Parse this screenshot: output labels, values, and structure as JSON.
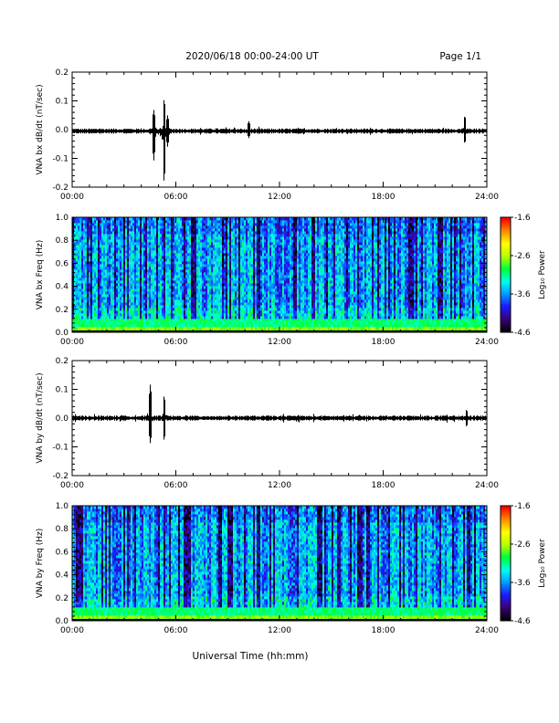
{
  "header": {
    "title": "2020/06/18  00:00-24:00 UT",
    "page": "Page 1/1"
  },
  "colors": {
    "trace": "#000000",
    "frame": "#000000",
    "colormap": [
      "#000000",
      "#3a0078",
      "#1a1aff",
      "#0099ff",
      "#00ffee",
      "#00ff33",
      "#b8ff00",
      "#ffff00",
      "#ff8c00",
      "#ff0000"
    ]
  },
  "chart_data": [
    {
      "type": "line",
      "ylabel": "VNA bx dB/dt (nT/sec)",
      "xlabel": "",
      "xlim": [
        "00:00",
        "24:00"
      ],
      "ylim": [
        -0.2,
        0.2
      ],
      "yticks": [
        "-0.2",
        "-0.1",
        "0.0",
        "0.1",
        "0.2"
      ],
      "xticks": [
        "00:00",
        "06:00",
        "12:00",
        "18:00",
        "24:00"
      ],
      "baseline": -0.005,
      "noise": 0.006,
      "events": [
        {
          "t": 4.7,
          "max": 0.07,
          "min": -0.11
        },
        {
          "t": 5.3,
          "max": 0.11,
          "min": -0.19
        },
        {
          "t": 5.5,
          "max": 0.05,
          "min": -0.06
        },
        {
          "t": 10.2,
          "max": 0.03,
          "min": -0.03
        },
        {
          "t": 22.7,
          "max": 0.05,
          "min": -0.05
        }
      ]
    },
    {
      "type": "heatmap",
      "ylabel": "VNA bx Freq (Hz)",
      "xlim": [
        "00:00",
        "24:00"
      ],
      "ylim": [
        0.0,
        1.0
      ],
      "yticks": [
        "0.0",
        "0.2",
        "0.4",
        "0.6",
        "0.8",
        "1.0"
      ],
      "xticks": [
        "00:00",
        "06:00",
        "12:00",
        "18:00",
        "24:00"
      ],
      "colorbar": {
        "label": "Log₁₀ Power",
        "min": -4.6,
        "max": -1.6,
        "ticks": [
          "-1.6",
          "-2.6",
          "-3.6",
          "-4.6"
        ]
      }
    },
    {
      "type": "line",
      "ylabel": "VNA by dB/dt (nT/sec)",
      "xlabel": "",
      "xlim": [
        "00:00",
        "24:00"
      ],
      "ylim": [
        -0.2,
        0.2
      ],
      "yticks": [
        "-0.2",
        "-0.1",
        "0.0",
        "0.1",
        "0.2"
      ],
      "xticks": [
        "00:00",
        "06:00",
        "12:00",
        "18:00",
        "24:00"
      ],
      "baseline": 0.0,
      "noise": 0.006,
      "events": [
        {
          "t": 4.5,
          "max": 0.12,
          "min": -0.09
        },
        {
          "t": 5.3,
          "max": 0.08,
          "min": -0.08
        },
        {
          "t": 22.8,
          "max": 0.03,
          "min": -0.03
        }
      ]
    },
    {
      "type": "heatmap",
      "ylabel": "VNA by Freq (Hz)",
      "xlabel": "Universal Time (hh:mm)",
      "xlim": [
        "00:00",
        "24:00"
      ],
      "ylim": [
        0.0,
        1.0
      ],
      "yticks": [
        "0.0",
        "0.2",
        "0.4",
        "0.6",
        "0.8",
        "1.0"
      ],
      "xticks": [
        "00:00",
        "06:00",
        "12:00",
        "18:00",
        "24:00"
      ],
      "colorbar": {
        "label": "Log₁₀ Power",
        "min": -4.6,
        "max": -1.6,
        "ticks": [
          "-1.6",
          "-2.6",
          "-3.6",
          "-4.6"
        ]
      }
    }
  ]
}
